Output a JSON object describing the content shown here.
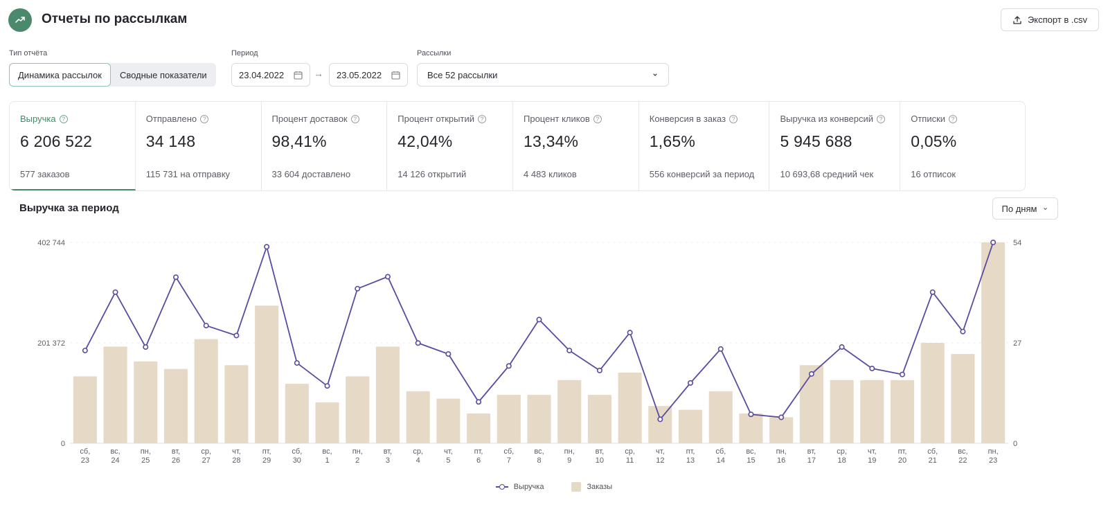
{
  "header": {
    "title": "Отчеты по рассылкам",
    "export_label": "Экспорт в .csv"
  },
  "filters": {
    "report_type_label": "Тип отчёта",
    "report_types": [
      "Динамика рассылок",
      "Сводные показатели"
    ],
    "active_report_type": "Динамика рассылок",
    "period_label": "Период",
    "date_from": "23.04.2022",
    "date_to": "23.05.2022",
    "mailings_label": "Рассылки",
    "mailings_value": "Все 52 рассылки"
  },
  "metrics": [
    {
      "label": "Выручка",
      "value": "6 206 522",
      "sub": "577 заказов"
    },
    {
      "label": "Отправлено",
      "value": "34 148",
      "sub": "115 731 на отправку"
    },
    {
      "label": "Процент доставок",
      "value": "98,41%",
      "sub": "33 604 доставлено"
    },
    {
      "label": "Процент открытий",
      "value": "42,04%",
      "sub": "14 126 открытий"
    },
    {
      "label": "Процент кликов",
      "value": "13,34%",
      "sub": "4 483 кликов"
    },
    {
      "label": "Конверсия в заказ",
      "value": "1,65%",
      "sub": "556 конверсий за период"
    },
    {
      "label": "Выручка из конверсий",
      "value": "5 945 688",
      "sub": "10 693,68 средний чек"
    },
    {
      "label": "Отписки",
      "value": "0,05%",
      "sub": "16 отписок"
    }
  ],
  "chart_section": {
    "title": "Выручка за период",
    "granularity": "По дням"
  },
  "colors": {
    "accent": "#4a8a6a",
    "line": "#5b4aa0",
    "bar": "#e6d9c6"
  },
  "chart_data": {
    "type": "bar",
    "categories": [
      "сб, 23",
      "вс, 24",
      "пн, 25",
      "вт, 26",
      "ср, 27",
      "чт, 28",
      "пт, 29",
      "сб, 30",
      "вс, 1",
      "пн, 2",
      "вт, 3",
      "ср, 4",
      "чт, 5",
      "пт, 6",
      "сб, 7",
      "вс, 8",
      "пн, 9",
      "вт, 10",
      "ср, 11",
      "чт, 12",
      "пт, 13",
      "сб, 14",
      "вс, 15",
      "пн, 16",
      "вт, 17",
      "ср, 18",
      "чт, 19",
      "пт, 20",
      "сб, 21",
      "вс, 22",
      "пн, 23"
    ],
    "series": [
      {
        "name": "Выручка",
        "type": "line",
        "axis": "left",
        "values": [
          186000,
          303000,
          193000,
          333000,
          236000,
          216000,
          394000,
          161000,
          115000,
          310000,
          334000,
          201000,
          179000,
          83000,
          155000,
          248000,
          186000,
          146000,
          222000,
          48000,
          121000,
          189000,
          58000,
          52000,
          139000,
          193000,
          150000,
          138000,
          303000,
          224000,
          402744
        ]
      },
      {
        "name": "Заказы",
        "type": "bar",
        "axis": "right",
        "values": [
          18,
          26,
          22,
          20,
          28,
          21,
          37,
          16,
          11,
          18,
          26,
          14,
          12,
          8,
          13,
          13,
          17,
          13,
          19,
          10,
          9,
          14,
          8,
          7,
          21,
          17,
          17,
          17,
          27,
          24,
          54
        ]
      }
    ],
    "y_left": {
      "min": 0,
      "max": 402744,
      "ticks": [
        "0",
        "201 372",
        "402 744"
      ]
    },
    "y_right": {
      "min": 0,
      "max": 54,
      "ticks": [
        "0",
        "27",
        "54"
      ]
    },
    "legend": [
      "Выручка",
      "Заказы"
    ]
  }
}
